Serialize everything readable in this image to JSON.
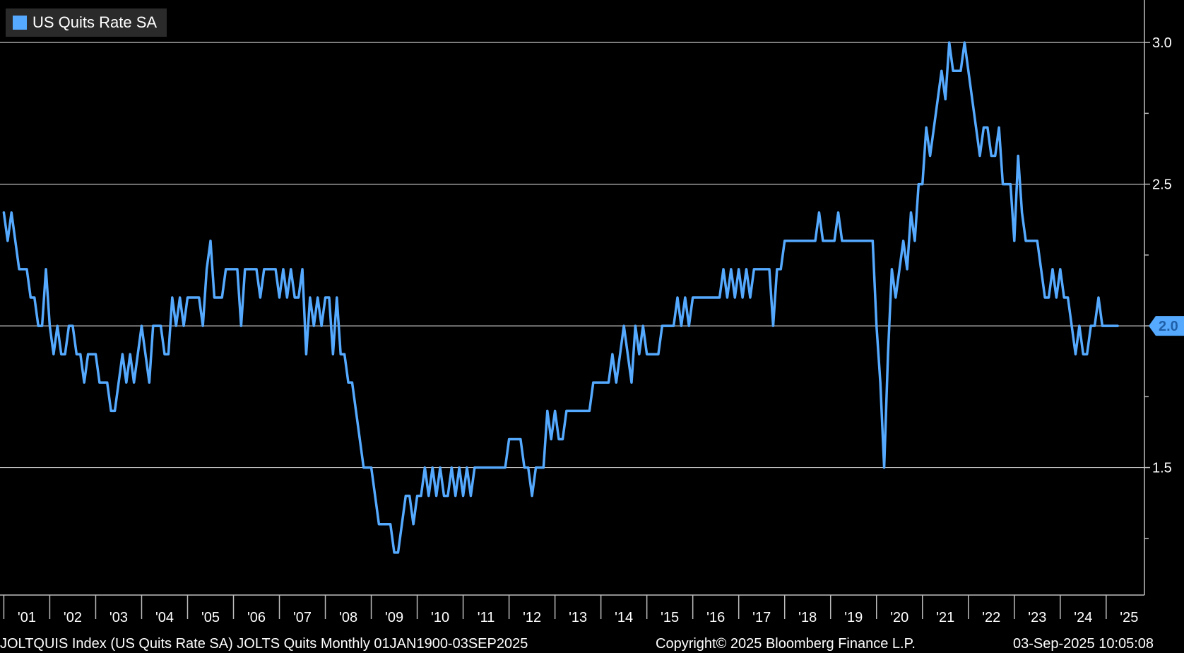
{
  "chart_data": {
    "type": "line",
    "title": "",
    "xlabel": "",
    "ylabel": "",
    "x_start": "2001-01",
    "x_range": [
      "2000-12",
      "2025-11"
    ],
    "ylim": [
      1.05,
      3.15
    ],
    "yticks": [
      1.5,
      2.0,
      2.5,
      3.0
    ],
    "ytick_labels": [
      "1.5",
      "2.0",
      "2.5",
      "3.0"
    ],
    "yticks_minor": [
      1.25,
      1.75,
      2.25,
      2.75
    ],
    "xtick_labels": [
      "'01",
      "'02",
      "'03",
      "'04",
      "'05",
      "'06",
      "'07",
      "'08",
      "'09",
      "'10",
      "'11",
      "'12",
      "'13",
      "'14",
      "'15",
      "'16",
      "'17",
      "'18",
      "'19",
      "'20",
      "'21",
      "'22",
      "'23",
      "'24",
      "'25"
    ],
    "grid": true,
    "legend_position": "top-left",
    "last_value_label": "2.0",
    "series": [
      {
        "name": "US Quits Rate SA",
        "color": "#55aaff",
        "values": [
          2.4,
          2.3,
          2.4,
          2.3,
          2.2,
          2.2,
          2.2,
          2.1,
          2.1,
          2.0,
          2.0,
          2.2,
          2.0,
          1.9,
          2.0,
          1.9,
          1.9,
          2.0,
          2.0,
          1.9,
          1.9,
          1.8,
          1.9,
          1.9,
          1.9,
          1.8,
          1.8,
          1.8,
          1.7,
          1.7,
          1.8,
          1.9,
          1.8,
          1.9,
          1.8,
          1.9,
          2.0,
          1.9,
          1.8,
          2.0,
          2.0,
          2.0,
          1.9,
          1.9,
          2.1,
          2.0,
          2.1,
          2.0,
          2.1,
          2.1,
          2.1,
          2.1,
          2.0,
          2.2,
          2.3,
          2.1,
          2.1,
          2.1,
          2.2,
          2.2,
          2.2,
          2.2,
          2.0,
          2.2,
          2.2,
          2.2,
          2.2,
          2.1,
          2.2,
          2.2,
          2.2,
          2.2,
          2.1,
          2.2,
          2.1,
          2.2,
          2.1,
          2.1,
          2.2,
          1.9,
          2.1,
          2.0,
          2.1,
          2.0,
          2.1,
          2.1,
          1.9,
          2.1,
          1.9,
          1.9,
          1.8,
          1.8,
          1.7,
          1.6,
          1.5,
          1.5,
          1.5,
          1.4,
          1.3,
          1.3,
          1.3,
          1.3,
          1.2,
          1.2,
          1.3,
          1.4,
          1.4,
          1.3,
          1.4,
          1.4,
          1.5,
          1.4,
          1.5,
          1.4,
          1.5,
          1.4,
          1.4,
          1.5,
          1.4,
          1.5,
          1.4,
          1.5,
          1.4,
          1.5,
          1.5,
          1.5,
          1.5,
          1.5,
          1.5,
          1.5,
          1.5,
          1.5,
          1.6,
          1.6,
          1.6,
          1.6,
          1.5,
          1.5,
          1.4,
          1.5,
          1.5,
          1.5,
          1.7,
          1.6,
          1.7,
          1.6,
          1.6,
          1.7,
          1.7,
          1.7,
          1.7,
          1.7,
          1.7,
          1.7,
          1.8,
          1.8,
          1.8,
          1.8,
          1.8,
          1.9,
          1.8,
          1.9,
          2.0,
          1.9,
          1.8,
          2.0,
          1.9,
          2.0,
          1.9,
          1.9,
          1.9,
          1.9,
          2.0,
          2.0,
          2.0,
          2.0,
          2.1,
          2.0,
          2.1,
          2.0,
          2.1,
          2.1,
          2.1,
          2.1,
          2.1,
          2.1,
          2.1,
          2.1,
          2.2,
          2.1,
          2.2,
          2.1,
          2.2,
          2.1,
          2.2,
          2.1,
          2.2,
          2.2,
          2.2,
          2.2,
          2.2,
          2.0,
          2.2,
          2.2,
          2.3,
          2.3,
          2.3,
          2.3,
          2.3,
          2.3,
          2.3,
          2.3,
          2.3,
          2.4,
          2.3,
          2.3,
          2.3,
          2.3,
          2.4,
          2.3,
          2.3,
          2.3,
          2.3,
          2.3,
          2.3,
          2.3,
          2.3,
          2.3,
          2.0,
          1.8,
          1.5,
          1.9,
          2.2,
          2.1,
          2.2,
          2.3,
          2.2,
          2.4,
          2.3,
          2.5,
          2.5,
          2.7,
          2.6,
          2.7,
          2.8,
          2.9,
          2.8,
          3.0,
          2.9,
          2.9,
          2.9,
          3.0,
          2.9,
          2.8,
          2.7,
          2.6,
          2.7,
          2.7,
          2.6,
          2.6,
          2.7,
          2.5,
          2.5,
          2.5,
          2.3,
          2.6,
          2.4,
          2.3,
          2.3,
          2.3,
          2.3,
          2.2,
          2.1,
          2.1,
          2.2,
          2.1,
          2.2,
          2.1,
          2.1,
          2.0,
          1.9,
          2.0,
          1.9,
          1.9,
          2.0,
          2.0,
          2.1,
          2.0,
          2.0,
          2.0,
          2.0,
          2.0
        ]
      }
    ]
  },
  "footer": {
    "left": "JOLTQUIS Index (US Quits Rate SA) JOLTS Quits  Monthly 01JAN1900-03SEP2025",
    "center": "Copyright© 2025 Bloomberg Finance L.P.",
    "right": "03-Sep-2025 10:05:08"
  }
}
